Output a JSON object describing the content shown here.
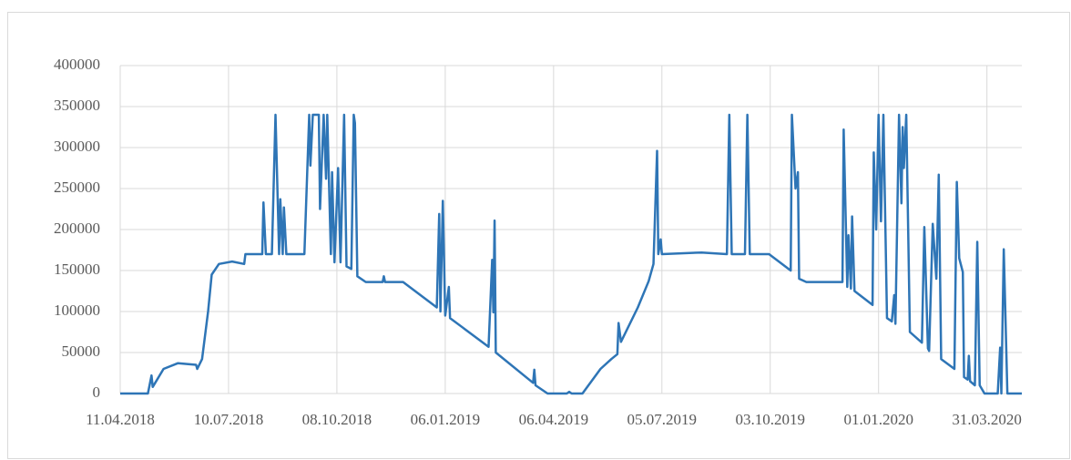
{
  "chart_data": {
    "type": "line",
    "x": [
      "11.04.2018",
      "04.05.2018",
      "07.05.2018",
      "08.05.2018",
      "17.05.2018",
      "29.05.2018",
      "13.06.2018",
      "14.06.2018",
      "18.06.2018",
      "23.06.2018",
      "26.06.2018",
      "02.07.2018",
      "13.07.2018",
      "23.07.2018",
      "24.07.2018",
      "07.08.2018",
      "08.08.2018",
      "10.08.2018",
      "15.08.2018",
      "18.08.2018",
      "21.08.2018",
      "22.08.2018",
      "24.08.2018",
      "25.08.2018",
      "27.08.2018",
      "11.09.2018",
      "15.09.2018",
      "16.09.2018",
      "18.09.2018",
      "23.09.2018",
      "24.09.2018",
      "27.09.2018",
      "29.09.2018",
      "30.09.2018",
      "03.10.2018",
      "04.10.2018",
      "06.10.2018",
      "09.10.2018",
      "11.10.2018",
      "14.10.2018",
      "16.10.2018",
      "20.10.2018",
      "22.10.2018",
      "23.10.2018",
      "25.10.2018",
      "01.11.2018",
      "15.11.2018",
      "16.11.2018",
      "17.11.2018",
      "02.12.2018",
      "30.12.2018",
      "01.01.2019",
      "02.01.2019",
      "04.01.2019",
      "06.01.2019",
      "09.01.2019",
      "10.01.2019",
      "11.02.2019",
      "14.02.2019",
      "15.02.2019",
      "16.02.2019",
      "17.02.2019",
      "20.03.2019",
      "21.03.2019",
      "22.03.2019",
      "01.04.2019",
      "17.04.2019",
      "19.04.2019",
      "21.04.2019",
      "30.04.2019",
      "15.05.2019",
      "24.05.2019",
      "29.05.2019",
      "30.05.2019",
      "01.06.2019",
      "15.06.2019",
      "24.06.2019",
      "28.06.2019",
      "01.07.2019",
      "02.07.2019",
      "04.07.2019",
      "05.07.2019",
      "07.08.2019",
      "28.08.2019",
      "30.08.2019",
      "01.09.2019",
      "12.09.2019",
      "14.09.2019",
      "16.09.2019",
      "02.10.2019",
      "20.10.2019",
      "21.10.2019",
      "24.10.2019",
      "26.10.2019",
      "27.10.2019",
      "02.11.2019",
      "02.12.2019",
      "03.12.2019",
      "06.12.2019",
      "07.12.2019",
      "09.12.2019",
      "10.12.2019",
      "12.12.2019",
      "27.12.2019",
      "28.12.2019",
      "30.12.2019",
      "01.01.2020",
      "03.01.2020",
      "05.01.2020",
      "08.01.2020",
      "12.01.2020",
      "14.01.2020",
      "15.01.2020",
      "18.01.2020",
      "20.01.2020",
      "21.01.2020",
      "22.01.2020",
      "24.01.2020",
      "27.01.2020",
      "06.02.2020",
      "08.02.2020",
      "11.02.2020",
      "12.02.2020",
      "15.02.2020",
      "18.02.2020",
      "20.02.2020",
      "22.02.2020",
      "04.03.2020",
      "06.03.2020",
      "08.03.2020",
      "11.03.2020",
      "12.03.2020",
      "15.03.2020",
      "16.03.2020",
      "17.03.2020",
      "21.03.2020",
      "23.03.2020",
      "25.03.2020",
      "29.03.2020",
      "09.04.2020",
      "11.04.2020",
      "12.04.2020",
      "14.04.2020",
      "17.04.2020",
      "29.04.2020"
    ],
    "series": [
      {
        "color": "#2e75b6",
        "values": [
          0,
          0,
          22000,
          8000,
          30000,
          37000,
          35000,
          30000,
          42000,
          100000,
          145000,
          158000,
          161000,
          158000,
          170000,
          170000,
          233000,
          170000,
          170000,
          340000,
          170000,
          237000,
          170000,
          227000,
          170000,
          170000,
          340000,
          278000,
          340000,
          340000,
          225000,
          340000,
          262000,
          340000,
          170000,
          270000,
          160000,
          275000,
          160000,
          340000,
          155000,
          152000,
          340000,
          330000,
          143000,
          136000,
          136000,
          143000,
          136000,
          136000,
          105000,
          219000,
          100000,
          235000,
          95000,
          130000,
          92000,
          57000,
          163000,
          99000,
          211000,
          50000,
          13000,
          29000,
          10000,
          0,
          0,
          2000,
          0,
          0,
          30000,
          42000,
          48000,
          86000,
          63000,
          105000,
          137000,
          158000,
          296000,
          170000,
          188000,
          170000,
          172000,
          170000,
          340000,
          170000,
          170000,
          340000,
          170000,
          170000,
          150000,
          340000,
          250000,
          270000,
          140000,
          136000,
          136000,
          322000,
          130000,
          193000,
          128000,
          216000,
          125000,
          108000,
          294000,
          200000,
          340000,
          210000,
          340000,
          92000,
          88000,
          120000,
          85000,
          340000,
          232000,
          325000,
          275000,
          340000,
          75000,
          62000,
          203000,
          55000,
          52000,
          207000,
          140000,
          267000,
          42000,
          30000,
          258000,
          165000,
          148000,
          20000,
          17000,
          46000,
          15000,
          10000,
          185000,
          10000,
          0,
          0,
          56000,
          0,
          176000,
          0,
          0
        ]
      }
    ],
    "xlim": [
      "11.04.2018",
      "29.04.2020"
    ],
    "xticks": [
      "11.04.2018",
      "10.07.2018",
      "08.10.2018",
      "06.01.2019",
      "06.04.2019",
      "05.07.2019",
      "03.10.2019",
      "01.01.2020",
      "31.03.2020"
    ],
    "ylim": [
      0,
      400000
    ],
    "yticks": [
      0,
      50000,
      100000,
      150000,
      200000,
      250000,
      300000,
      350000,
      400000
    ],
    "grid": true
  }
}
